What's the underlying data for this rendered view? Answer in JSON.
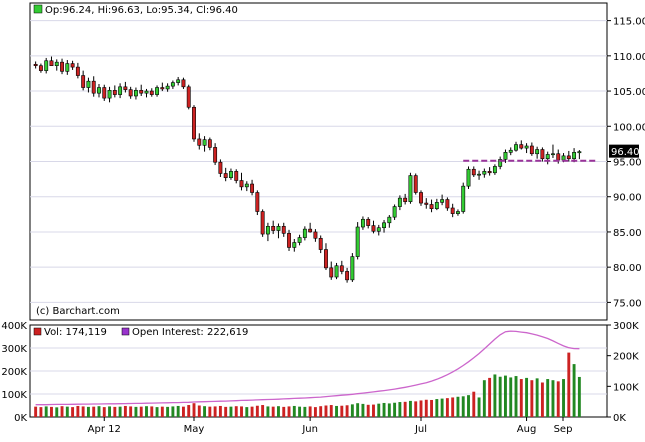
{
  "legend": {
    "price": "Op:96.24, Hi:96.63, Lo:95.34, Cl:96.40",
    "volume": "Vol: 174,119",
    "open_interest": "Open Interest: 222,619",
    "copyright": "(c) Barchart.com"
  },
  "colors": {
    "up": "#33cc33",
    "down": "#cc2222",
    "open_interest_line": "#cc66cc",
    "last_price_line": "#993399",
    "last_price_bg": "#000000",
    "frame": "#000000",
    "grid": "#d8d8e8",
    "volume_bar_up": "#228822",
    "volume_bar_down": "#cc2222"
  },
  "chart_data": [
    {
      "type": "candlestick",
      "title": "",
      "ylim": [
        72.5,
        117.5
      ],
      "y_ticks": [
        "115.00",
        "110.00",
        "105.00",
        "100.00",
        "95.00",
        "90.00",
        "85.00",
        "80.00",
        "75.00"
      ],
      "x_ticks": [
        "Apr 12",
        "May",
        "Jun",
        "Jul",
        "Aug",
        "Sep"
      ],
      "last_price": "96.40",
      "reference_level": 95.1,
      "candles": [
        [
          108.8,
          109.2,
          108.2,
          108.6
        ],
        [
          108.6,
          108.9,
          107.6,
          107.9
        ],
        [
          107.9,
          109.7,
          107.5,
          109.3
        ],
        [
          109.3,
          109.9,
          108.8,
          108.6
        ],
        [
          108.6,
          109.5,
          107.9,
          109.1
        ],
        [
          109.1,
          109.6,
          107.4,
          107.8
        ],
        [
          107.8,
          109.4,
          107.3,
          108.9
        ],
        [
          108.9,
          109.3,
          108.0,
          108.4
        ],
        [
          108.4,
          109.0,
          106.8,
          107.2
        ],
        [
          107.2,
          107.9,
          105.1,
          105.5
        ],
        [
          105.5,
          106.9,
          104.8,
          106.4
        ],
        [
          106.4,
          107.1,
          104.2,
          104.7
        ],
        [
          104.7,
          106.0,
          104.1,
          105.5
        ],
        [
          105.5,
          105.9,
          103.6,
          104.0
        ],
        [
          104.0,
          105.6,
          103.4,
          105.1
        ],
        [
          105.1,
          105.8,
          104.1,
          104.5
        ],
        [
          104.5,
          106.1,
          104.0,
          105.6
        ],
        [
          105.6,
          106.3,
          104.8,
          105.2
        ],
        [
          105.2,
          105.6,
          103.9,
          104.3
        ],
        [
          104.3,
          105.5,
          103.8,
          105.1
        ],
        [
          105.1,
          105.9,
          104.3,
          104.7
        ],
        [
          104.7,
          105.3,
          104.1,
          105.0
        ],
        [
          105.0,
          105.4,
          104.2,
          104.5
        ],
        [
          104.5,
          105.8,
          104.2,
          105.5
        ],
        [
          105.5,
          106.2,
          105.0,
          105.3
        ],
        [
          105.3,
          106.1,
          104.9,
          105.7
        ],
        [
          105.7,
          106.5,
          105.3,
          106.2
        ],
        [
          106.2,
          107.0,
          105.8,
          106.6
        ],
        [
          106.6,
          106.9,
          105.3,
          105.6
        ],
        [
          105.6,
          105.9,
          102.4,
          102.7
        ],
        [
          102.7,
          103.0,
          97.8,
          98.2
        ],
        [
          98.2,
          99.0,
          96.7,
          97.3
        ],
        [
          97.3,
          98.6,
          96.4,
          98.1
        ],
        [
          98.1,
          98.4,
          96.6,
          97.0
        ],
        [
          97.0,
          97.6,
          94.5,
          94.9
        ],
        [
          94.9,
          95.3,
          92.8,
          93.3
        ],
        [
          93.3,
          94.1,
          92.2,
          92.7
        ],
        [
          92.7,
          94.0,
          92.4,
          93.6
        ],
        [
          93.6,
          93.9,
          91.9,
          92.3
        ],
        [
          92.3,
          93.4,
          90.9,
          91.4
        ],
        [
          91.4,
          92.2,
          90.8,
          91.8
        ],
        [
          91.8,
          92.4,
          90.2,
          90.6
        ],
        [
          90.6,
          90.9,
          87.4,
          87.9
        ],
        [
          87.9,
          88.2,
          84.3,
          84.7
        ],
        [
          84.7,
          86.3,
          83.7,
          85.8
        ],
        [
          85.8,
          86.6,
          84.7,
          85.2
        ],
        [
          85.2,
          86.2,
          84.1,
          85.8
        ],
        [
          85.8,
          86.3,
          84.3,
          84.8
        ],
        [
          84.8,
          85.3,
          82.3,
          82.8
        ],
        [
          82.8,
          84.0,
          82.2,
          83.5
        ],
        [
          83.5,
          84.6,
          83.1,
          84.2
        ],
        [
          84.2,
          85.8,
          83.8,
          85.4
        ],
        [
          85.4,
          86.3,
          84.9,
          85.0
        ],
        [
          85.0,
          85.4,
          83.6,
          84.1
        ],
        [
          84.1,
          84.5,
          82.0,
          82.5
        ],
        [
          82.5,
          83.4,
          79.6,
          79.9
        ],
        [
          79.9,
          80.8,
          78.2,
          78.6
        ],
        [
          78.6,
          80.6,
          78.3,
          80.2
        ],
        [
          80.2,
          80.9,
          79.0,
          79.4
        ],
        [
          79.4,
          79.9,
          77.8,
          78.2
        ],
        [
          78.2,
          82.0,
          77.9,
          81.5
        ],
        [
          81.5,
          86.4,
          81.1,
          85.7
        ],
        [
          85.7,
          87.2,
          85.3,
          86.8
        ],
        [
          86.8,
          87.1,
          85.5,
          85.9
        ],
        [
          85.9,
          86.6,
          84.8,
          85.1
        ],
        [
          85.1,
          86.0,
          84.5,
          85.6
        ],
        [
          85.6,
          86.7,
          84.9,
          86.3
        ],
        [
          86.3,
          87.4,
          85.6,
          87.1
        ],
        [
          87.1,
          88.9,
          86.7,
          88.6
        ],
        [
          88.6,
          90.2,
          88.1,
          89.8
        ],
        [
          89.8,
          90.4,
          88.9,
          89.3
        ],
        [
          89.3,
          93.4,
          89.0,
          93.0
        ],
        [
          93.0,
          93.3,
          90.3,
          90.6
        ],
        [
          90.6,
          90.9,
          88.7,
          89.1
        ],
        [
          89.1,
          89.8,
          88.3,
          88.9
        ],
        [
          88.9,
          89.6,
          87.8,
          88.3
        ],
        [
          88.3,
          89.7,
          88.1,
          89.2
        ],
        [
          89.2,
          90.3,
          88.8,
          89.6
        ],
        [
          89.6,
          89.9,
          88.0,
          88.4
        ],
        [
          88.4,
          89.0,
          87.1,
          87.6
        ],
        [
          87.6,
          88.2,
          87.3,
          87.9
        ],
        [
          87.9,
          92.0,
          87.6,
          91.5
        ],
        [
          91.5,
          94.3,
          91.1,
          93.9
        ],
        [
          93.9,
          94.3,
          92.8,
          93.1
        ],
        [
          93.1,
          93.7,
          92.4,
          93.2
        ],
        [
          93.2,
          94.0,
          92.7,
          93.6
        ],
        [
          93.6,
          94.2,
          93.0,
          93.4
        ],
        [
          93.4,
          94.6,
          93.1,
          94.3
        ],
        [
          94.3,
          95.7,
          93.9,
          95.3
        ],
        [
          95.3,
          96.7,
          94.8,
          96.3
        ],
        [
          96.3,
          97.0,
          95.9,
          96.6
        ],
        [
          96.6,
          97.8,
          96.4,
          97.4
        ],
        [
          97.4,
          98.0,
          96.7,
          96.9
        ],
        [
          96.9,
          97.6,
          96.2,
          97.2
        ],
        [
          97.2,
          97.7,
          95.8,
          96.1
        ],
        [
          96.1,
          97.1,
          95.4,
          96.7
        ],
        [
          96.7,
          97.0,
          95.0,
          95.4
        ],
        [
          95.4,
          96.4,
          94.6,
          96.0
        ],
        [
          96.0,
          97.4,
          95.5,
          96.1
        ],
        [
          96.1,
          96.7,
          94.7,
          95.2
        ],
        [
          95.2,
          96.2,
          94.9,
          95.8
        ],
        [
          95.8,
          96.5,
          95.0,
          95.4
        ],
        [
          95.4,
          96.9,
          94.9,
          96.3
        ],
        [
          96.24,
          96.63,
          95.34,
          96.4
        ]
      ]
    },
    {
      "type": "bar",
      "title": "",
      "ylim": [
        0,
        400000
      ],
      "y_ticks_left": [
        "400K",
        "300K",
        "200K",
        "100K",
        "0K"
      ],
      "y_ticks_right": [
        "300K",
        "200K",
        "100K",
        "0K"
      ],
      "right_axis_max": 300000,
      "volume": [
        45000,
        43000,
        46000,
        44000,
        42000,
        47000,
        45000,
        43000,
        48000,
        46000,
        44000,
        45000,
        47000,
        43000,
        46000,
        44000,
        45000,
        48000,
        46000,
        44000,
        45000,
        47000,
        46000,
        43000,
        45000,
        44000,
        46000,
        48000,
        45000,
        52000,
        60000,
        50000,
        47000,
        45000,
        46000,
        48000,
        44000,
        45000,
        47000,
        46000,
        43000,
        45000,
        49000,
        52000,
        46000,
        45000,
        47000,
        44000,
        46000,
        48000,
        45000,
        44000,
        46000,
        43000,
        47000,
        50000,
        52000,
        48000,
        49000,
        51000,
        55000,
        60000,
        57000,
        53000,
        54000,
        58000,
        61000,
        59000,
        62000,
        65000,
        66000,
        70000,
        68000,
        72000,
        75000,
        74000,
        78000,
        80000,
        82000,
        85000,
        88000,
        90000,
        95000,
        110000,
        85000,
        160000,
        170000,
        185000,
        175000,
        180000,
        172000,
        178000,
        165000,
        170000,
        160000,
        168000,
        150000,
        165000,
        160000,
        155000,
        165000,
        280000,
        230000,
        174119
      ],
      "open_interest": [
        40000,
        40500,
        40200,
        40800,
        41000,
        41200,
        41000,
        41500,
        41800,
        42000,
        42200,
        42500,
        42300,
        42800,
        43000,
        43200,
        43500,
        43800,
        44000,
        44300,
        44500,
        45000,
        45200,
        45500,
        46000,
        46200,
        46800,
        47000,
        47500,
        48000,
        49000,
        49500,
        50000,
        50500,
        51000,
        51500,
        52000,
        52500,
        53000,
        54000,
        54500,
        55000,
        55800,
        56500,
        57000,
        57500,
        58200,
        59000,
        59800,
        60500,
        61200,
        62000,
        63000,
        64000,
        65000,
        66500,
        68000,
        69500,
        71000,
        72500,
        74000,
        76000,
        78000,
        80000,
        82000,
        84000,
        86000,
        88500,
        91000,
        94000,
        97000,
        100000,
        104000,
        108000,
        112000,
        117000,
        123000,
        130000,
        138000,
        147000,
        157000,
        168000,
        180000,
        193000,
        207000,
        222000,
        238000,
        254000,
        268000,
        278000,
        280000,
        279000,
        277000,
        275000,
        271000,
        267000,
        262000,
        256000,
        248000,
        240000,
        232000,
        226000,
        223000,
        222619
      ]
    }
  ]
}
